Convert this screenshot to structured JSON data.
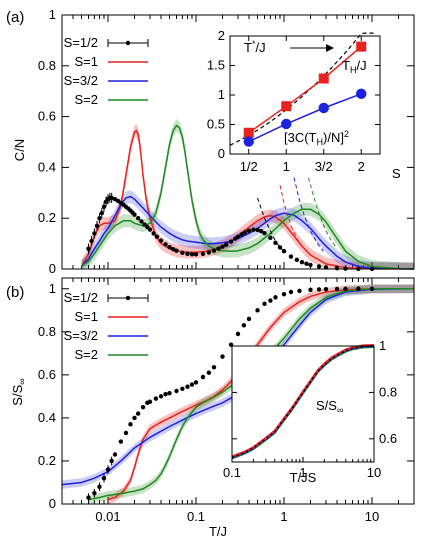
{
  "chart_data": [
    {
      "panel": "(a)",
      "type": "line",
      "xlabel": "",
      "ylabel": "C/N",
      "xscale": "log",
      "xlim": [
        0.003,
        30
      ],
      "ylim": [
        0,
        1
      ],
      "yticks": [
        "0",
        "0.2",
        "0.4",
        "0.6",
        "0.8",
        "1"
      ],
      "xticks": [],
      "legend_position": "top-left",
      "series": [
        {
          "name": "S=1/2",
          "style": "points-with-errorbars",
          "color": "#000000",
          "x": [
            0.006,
            0.0065,
            0.007,
            0.0075,
            0.008,
            0.0085,
            0.009,
            0.0095,
            0.01,
            0.0105,
            0.011,
            0.012,
            0.013,
            0.014,
            0.015,
            0.016,
            0.017,
            0.018,
            0.019,
            0.02,
            0.022,
            0.024,
            0.026,
            0.028,
            0.03,
            0.033,
            0.036,
            0.04,
            0.045,
            0.05,
            0.055,
            0.06,
            0.07,
            0.08,
            0.09,
            0.1,
            0.12,
            0.14,
            0.16,
            0.18,
            0.2,
            0.22,
            0.25,
            0.28,
            0.3,
            0.33,
            0.36,
            0.4,
            0.45,
            0.5,
            0.55,
            0.6,
            0.7,
            0.8,
            0.9,
            1.0,
            1.2,
            1.4,
            1.6,
            1.8,
            2.0,
            2.5,
            3,
            4,
            5,
            7,
            10
          ],
          "y": [
            0.08,
            0.11,
            0.14,
            0.17,
            0.2,
            0.22,
            0.245,
            0.265,
            0.275,
            0.28,
            0.28,
            0.275,
            0.268,
            0.26,
            0.253,
            0.245,
            0.238,
            0.23,
            0.222,
            0.214,
            0.2,
            0.187,
            0.175,
            0.165,
            0.155,
            0.14,
            0.127,
            0.112,
            0.097,
            0.086,
            0.078,
            0.072,
            0.064,
            0.06,
            0.058,
            0.058,
            0.06,
            0.065,
            0.072,
            0.08,
            0.088,
            0.096,
            0.108,
            0.12,
            0.127,
            0.136,
            0.144,
            0.151,
            0.155,
            0.154,
            0.149,
            0.141,
            0.123,
            0.103,
            0.085,
            0.07,
            0.049,
            0.036,
            0.027,
            0.021,
            0.016,
            0.01,
            0.006,
            0.003,
            0.0015,
            0.0005,
            0.0001
          ]
        },
        {
          "name": "S=1",
          "style": "line-with-band",
          "color": "#e8231f",
          "x": [
            0.005,
            0.006,
            0.007,
            0.008,
            0.009,
            0.01,
            0.012,
            0.014,
            0.016,
            0.018,
            0.02,
            0.021,
            0.022,
            0.023,
            0.024,
            0.025,
            0.027,
            0.03,
            0.035,
            0.04,
            0.05,
            0.06,
            0.07,
            0.08,
            0.1,
            0.13,
            0.16,
            0.2,
            0.25,
            0.3,
            0.4,
            0.5,
            0.6,
            0.7,
            0.8,
            1.0,
            1.3,
            1.6,
            2,
            3,
            5,
            10,
            30
          ],
          "y": [
            0.01,
            0.06,
            0.13,
            0.17,
            0.18,
            0.18,
            0.19,
            0.25,
            0.37,
            0.48,
            0.54,
            0.545,
            0.53,
            0.49,
            0.43,
            0.37,
            0.28,
            0.2,
            0.13,
            0.1,
            0.08,
            0.072,
            0.068,
            0.066,
            0.066,
            0.07,
            0.078,
            0.09,
            0.11,
            0.13,
            0.165,
            0.19,
            0.205,
            0.21,
            0.205,
            0.18,
            0.13,
            0.09,
            0.055,
            0.02,
            0.005,
            0.0005,
            0.0
          ]
        },
        {
          "name": "S=3/2",
          "style": "line-with-band",
          "color": "#1c22e0",
          "x": [
            0.005,
            0.006,
            0.007,
            0.008,
            0.009,
            0.01,
            0.012,
            0.014,
            0.016,
            0.018,
            0.02,
            0.022,
            0.025,
            0.03,
            0.035,
            0.04,
            0.05,
            0.06,
            0.07,
            0.08,
            0.1,
            0.13,
            0.16,
            0.2,
            0.25,
            0.3,
            0.4,
            0.5,
            0.6,
            0.7,
            0.8,
            1.0,
            1.3,
            1.6,
            2,
            2.5,
            3,
            4,
            5,
            7,
            10,
            30
          ],
          "y": [
            0.01,
            0.04,
            0.08,
            0.11,
            0.14,
            0.16,
            0.21,
            0.255,
            0.28,
            0.285,
            0.275,
            0.26,
            0.24,
            0.21,
            0.185,
            0.165,
            0.14,
            0.125,
            0.115,
            0.11,
            0.105,
            0.1,
            0.1,
            0.103,
            0.11,
            0.12,
            0.14,
            0.16,
            0.18,
            0.198,
            0.21,
            0.22,
            0.212,
            0.19,
            0.16,
            0.12,
            0.09,
            0.05,
            0.028,
            0.01,
            0.003,
            0.0
          ]
        },
        {
          "name": "S=2",
          "style": "line-with-band",
          "color": "#1f8a1f",
          "x": [
            0.005,
            0.006,
            0.007,
            0.008,
            0.01,
            0.012,
            0.015,
            0.018,
            0.02,
            0.025,
            0.03,
            0.035,
            0.04,
            0.045,
            0.05,
            0.055,
            0.06,
            0.065,
            0.07,
            0.075,
            0.08,
            0.09,
            0.1,
            0.11,
            0.12,
            0.14,
            0.16,
            0.2,
            0.25,
            0.3,
            0.4,
            0.5,
            0.7,
            1.0,
            1.3,
            1.6,
            2,
            2.5,
            3,
            4,
            5,
            7,
            10,
            20,
            30
          ],
          "y": [
            0.01,
            0.03,
            0.06,
            0.09,
            0.14,
            0.17,
            0.19,
            0.19,
            0.18,
            0.17,
            0.18,
            0.22,
            0.3,
            0.4,
            0.49,
            0.545,
            0.565,
            0.555,
            0.52,
            0.46,
            0.39,
            0.27,
            0.19,
            0.14,
            0.115,
            0.09,
            0.08,
            0.072,
            0.07,
            0.072,
            0.083,
            0.1,
            0.14,
            0.19,
            0.22,
            0.235,
            0.235,
            0.215,
            0.185,
            0.12,
            0.07,
            0.03,
            0.01,
            0.001,
            0.0
          ]
        }
      ],
      "asymptotes": [
        {
          "color": "#000000",
          "x": [
            0.5,
            0.6,
            0.7,
            0.8,
            0.9,
            1.0
          ],
          "y": [
            0.28,
            0.2,
            0.15,
            0.11,
            0.085,
            0.07
          ]
        },
        {
          "color": "#e8231f",
          "x": [
            0.9,
            1.0,
            1.1,
            1.2,
            1.4,
            1.6
          ],
          "y": [
            0.33,
            0.26,
            0.21,
            0.17,
            0.12,
            0.09
          ]
        },
        {
          "color": "#1c22e0",
          "x": [
            1.3,
            1.5,
            1.7,
            2.0,
            2.4,
            2.8
          ],
          "y": [
            0.36,
            0.27,
            0.21,
            0.15,
            0.1,
            0.07
          ]
        },
        {
          "color": "#1f8a1f",
          "x": [
            1.9,
            2.2,
            2.5,
            2.9,
            3.4,
            4.0
          ],
          "y": [
            0.36,
            0.28,
            0.22,
            0.16,
            0.115,
            0.08
          ]
        }
      ],
      "inset": {
        "type": "line",
        "xlabel": "S",
        "xticks": [
          "1/2",
          "1",
          "3/2",
          "2"
        ],
        "x": [
          0.5,
          1.0,
          1.5,
          2.0
        ],
        "ylim": [
          0,
          2
        ],
        "yticks": [
          "0",
          "0.5",
          "1",
          "1.5",
          "2"
        ],
        "series": [
          {
            "name": "T_H/J",
            "marker": "square",
            "color": "#e8231f",
            "values": [
              0.36,
              0.81,
              1.28,
              1.82
            ]
          },
          {
            "name": "[3C(T_H)/N]^2",
            "marker": "circle",
            "color": "#1c22e0",
            "values": [
              0.21,
              0.51,
              0.78,
              1.02
            ]
          },
          {
            "name": "T*/J",
            "style": "dashed",
            "color": "#000000",
            "values": [
              0.25,
              0.75,
              1.35,
              2.0
            ]
          }
        ]
      }
    },
    {
      "panel": "(b)",
      "type": "line",
      "xlabel": "T/J",
      "ylabel": "S/S∞",
      "xscale": "log",
      "xlim": [
        0.003,
        30
      ],
      "ylim": [
        0,
        1.05
      ],
      "xticks": [
        "0.01",
        "0.1",
        "1",
        "10"
      ],
      "yticks": [
        "0",
        "0.2",
        "0.4",
        "0.6",
        "0.8",
        "1"
      ],
      "legend_position": "top-left",
      "series": [
        {
          "name": "S=1/2",
          "style": "points-with-errorbars",
          "color": "#000000",
          "x": [
            0.006,
            0.007,
            0.008,
            0.009,
            0.01,
            0.011,
            0.012,
            0.014,
            0.016,
            0.018,
            0.02,
            0.022,
            0.025,
            0.028,
            0.03,
            0.035,
            0.04,
            0.045,
            0.05,
            0.06,
            0.07,
            0.08,
            0.09,
            0.1,
            0.12,
            0.14,
            0.16,
            0.2,
            0.25,
            0.3,
            0.35,
            0.4,
            0.5,
            0.6,
            0.7,
            0.8,
            1.0,
            1.2,
            1.5,
            2,
            2.5,
            3,
            4,
            5,
            7,
            10
          ],
          "y": [
            0.03,
            0.05,
            0.08,
            0.12,
            0.16,
            0.2,
            0.23,
            0.29,
            0.33,
            0.37,
            0.4,
            0.42,
            0.45,
            0.47,
            0.475,
            0.49,
            0.5,
            0.51,
            0.515,
            0.525,
            0.535,
            0.545,
            0.555,
            0.565,
            0.59,
            0.61,
            0.635,
            0.685,
            0.74,
            0.79,
            0.83,
            0.86,
            0.9,
            0.93,
            0.945,
            0.96,
            0.975,
            0.985,
            0.99,
            0.995,
            0.997,
            0.998,
            0.999,
            1.0,
            1.0,
            1.0
          ]
        },
        {
          "name": "S=1",
          "style": "line-with-band",
          "color": "#e8231f",
          "x": [
            0.01,
            0.012,
            0.015,
            0.018,
            0.02,
            0.022,
            0.025,
            0.03,
            0.04,
            0.05,
            0.07,
            0.1,
            0.13,
            0.16,
            0.2,
            0.25,
            0.3,
            0.4,
            0.5,
            0.7,
            1.0,
            1.5,
            2,
            3,
            5,
            10,
            30
          ],
          "y": [
            0.02,
            0.03,
            0.06,
            0.11,
            0.17,
            0.23,
            0.3,
            0.35,
            0.38,
            0.4,
            0.43,
            0.46,
            0.48,
            0.5,
            0.53,
            0.57,
            0.61,
            0.68,
            0.74,
            0.82,
            0.89,
            0.94,
            0.965,
            0.985,
            0.995,
            1.0,
            1.0
          ]
        },
        {
          "name": "S=3/2",
          "style": "line-with-band",
          "color": "#1c22e0",
          "x": [
            0.003,
            0.005,
            0.007,
            0.01,
            0.014,
            0.02,
            0.03,
            0.05,
            0.07,
            0.1,
            0.15,
            0.2,
            0.3,
            0.4,
            0.5,
            0.7,
            1.0,
            1.5,
            2,
            3,
            5,
            10,
            30
          ],
          "y": [
            0.09,
            0.1,
            0.12,
            0.15,
            0.2,
            0.26,
            0.31,
            0.36,
            0.39,
            0.42,
            0.45,
            0.47,
            0.51,
            0.55,
            0.59,
            0.66,
            0.74,
            0.83,
            0.89,
            0.95,
            0.985,
            0.998,
            1.0
          ]
        },
        {
          "name": "S=2",
          "style": "line-with-band",
          "color": "#1f8a1f",
          "x": [
            0.006,
            0.008,
            0.01,
            0.015,
            0.02,
            0.025,
            0.03,
            0.035,
            0.04,
            0.045,
            0.05,
            0.06,
            0.07,
            0.08,
            0.1,
            0.12,
            0.15,
            0.2,
            0.3,
            0.5,
            0.7,
            1.0,
            1.5,
            2,
            3,
            5,
            10,
            30
          ],
          "y": [
            0.02,
            0.03,
            0.04,
            0.05,
            0.06,
            0.07,
            0.09,
            0.11,
            0.14,
            0.18,
            0.22,
            0.3,
            0.36,
            0.4,
            0.45,
            0.47,
            0.49,
            0.52,
            0.57,
            0.64,
            0.7,
            0.77,
            0.86,
            0.91,
            0.96,
            0.99,
            1.0,
            1.0
          ]
        }
      ],
      "inset": {
        "xlabel": "T/JS",
        "ylabel": "S/S∞",
        "xscale": "log",
        "xlim": [
          0.1,
          10
        ],
        "xticks": [
          "0.1",
          "1",
          "10"
        ],
        "ylim": [
          0.5,
          1.0
        ],
        "yticks": [
          "0.6",
          "0.8",
          "1"
        ],
        "curve": {
          "x": [
            0.1,
            0.15,
            0.2,
            0.3,
            0.4,
            0.5,
            0.7,
            1.0,
            1.3,
            1.6,
            2,
            2.5,
            3,
            4,
            5,
            7,
            10
          ],
          "y": [
            0.52,
            0.54,
            0.56,
            0.6,
            0.63,
            0.67,
            0.73,
            0.8,
            0.85,
            0.89,
            0.92,
            0.945,
            0.96,
            0.98,
            0.99,
            0.998,
            1.0
          ]
        }
      }
    }
  ]
}
